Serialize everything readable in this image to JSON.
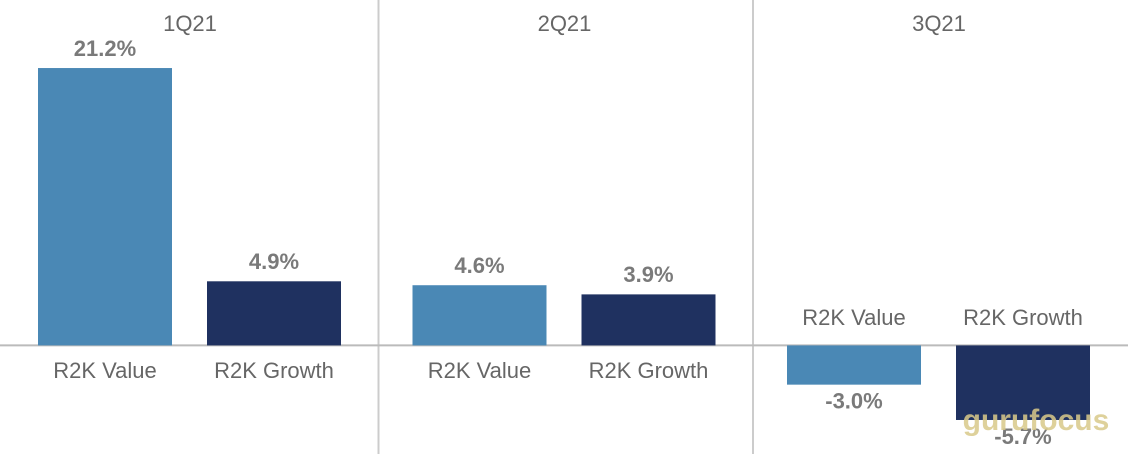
{
  "chart_data": {
    "type": "bar",
    "categories": [
      "1Q21",
      "2Q21",
      "3Q21"
    ],
    "series": [
      {
        "name": "R2K Value",
        "color": "#4a88b5",
        "values": [
          21.2,
          4.6,
          -3.0
        ],
        "value_labels": [
          "21.2%",
          "4.6%",
          "-3.0%"
        ]
      },
      {
        "name": "R2K Growth",
        "color": "#1f3160",
        "values": [
          4.9,
          3.9,
          -5.7
        ],
        "value_labels": [
          "4.9%",
          "3.9%",
          "-5.7%"
        ]
      }
    ],
    "ylim": [
      -8.3,
      26.4
    ],
    "watermark": "gurufocus"
  }
}
